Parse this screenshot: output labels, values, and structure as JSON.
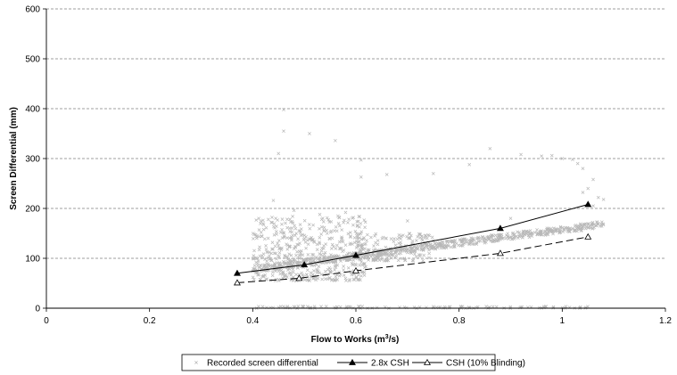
{
  "chart_data": {
    "type": "scatter",
    "title": "",
    "xlabel": "Flow to Works (m",
    "xlabel_sup": "3",
    "xlabel_tail": "/s)",
    "ylabel": "Screen Differential (mm)",
    "xlim": [
      0,
      1.2
    ],
    "ylim": [
      0,
      600
    ],
    "x_ticks": [
      "0",
      "0.2",
      "0.4",
      "0.6",
      "0.8",
      "1",
      "1.2"
    ],
    "y_ticks": [
      "0",
      "100",
      "200",
      "300",
      "400",
      "500",
      "600"
    ],
    "grid": "horizontal dashed",
    "legend_position": "bottom",
    "series": [
      {
        "name": "Recorded screen differential",
        "kind": "scatter",
        "marker": "x",
        "color": "#b8b8b8",
        "clusters": [
          {
            "x_range": [
              0.4,
              0.62
            ],
            "y_range": [
              55,
              185
            ],
            "count": 520
          },
          {
            "x_range": [
              0.6,
              0.75
            ],
            "y_range": [
              95,
              150
            ],
            "count": 160
          },
          {
            "x_range": [
              0.4,
              1.08
            ],
            "trend_start": [
              0.4,
              78
            ],
            "trend_end": [
              1.08,
              168
            ],
            "spread": 7,
            "count": 700
          },
          {
            "x_range": [
              0.4,
              1.05
            ],
            "y_range": [
              0,
              4
            ],
            "count": 110
          }
        ],
        "outliers": [
          [
            0.46,
            398
          ],
          [
            0.46,
            355
          ],
          [
            0.51,
            350
          ],
          [
            0.56,
            336
          ],
          [
            0.45,
            310
          ],
          [
            0.61,
            297
          ],
          [
            0.61,
            263
          ],
          [
            0.66,
            268
          ],
          [
            0.75,
            270
          ],
          [
            0.82,
            288
          ],
          [
            0.86,
            320
          ],
          [
            0.92,
            308
          ],
          [
            0.96,
            305
          ],
          [
            0.98,
            306
          ],
          [
            1.0,
            300
          ],
          [
            1.02,
            298
          ],
          [
            1.03,
            290
          ],
          [
            1.04,
            280
          ],
          [
            1.05,
            240
          ],
          [
            1.06,
            258
          ],
          [
            1.07,
            222
          ],
          [
            1.08,
            218
          ],
          [
            1.06,
            205
          ],
          [
            0.44,
            216
          ],
          [
            0.58,
            192
          ],
          [
            0.48,
            196
          ],
          [
            0.53,
            188
          ],
          [
            0.7,
            175
          ],
          [
            1.04,
            232
          ],
          [
            0.9,
            180
          ]
        ]
      },
      {
        "name": "2.8x CSH",
        "kind": "line",
        "marker": "filled-triangle",
        "color": "#000000",
        "dash": "solid",
        "x": [
          0.37,
          0.5,
          0.6,
          0.88,
          1.05
        ],
        "y": [
          70,
          87,
          106,
          160,
          208
        ]
      },
      {
        "name": "CSH (10% Blinding)",
        "kind": "line",
        "marker": "open-triangle",
        "color": "#000000",
        "dash": "dashed",
        "x": [
          0.37,
          0.49,
          0.6,
          0.88,
          1.05
        ],
        "y": [
          51,
          60,
          75,
          110,
          143
        ]
      }
    ]
  }
}
